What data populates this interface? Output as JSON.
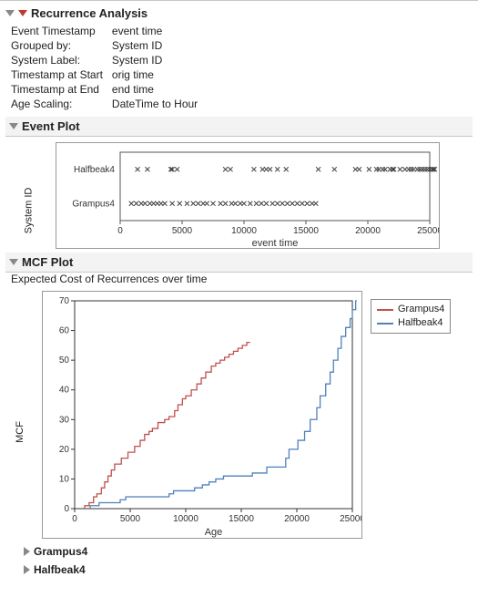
{
  "header": {
    "title": "Recurrence Analysis",
    "meta": [
      {
        "k": "Event Timestamp",
        "v": "event time"
      },
      {
        "k": "Grouped by:",
        "v": "System ID"
      },
      {
        "k": "System Label:",
        "v": "System ID"
      },
      {
        "k": "Timestamp at Start",
        "v": "orig time"
      },
      {
        "k": "Timestamp at End",
        "v": "end time"
      },
      {
        "k": "Age Scaling:",
        "v": "DateTime to Hour"
      }
    ]
  },
  "eventPlot": {
    "title": "Event Plot",
    "xlabel": "event time",
    "ylabel": "System ID",
    "xlim": [
      0,
      25000
    ],
    "xtick_step": 5000,
    "marker": "x",
    "marker_color": "#444444",
    "marker_size": 5,
    "series": [
      {
        "name": "Halfbeak4",
        "y": 0,
        "x": [
          1400,
          2200,
          4100,
          4200,
          4600,
          8500,
          8900,
          10800,
          11500,
          11800,
          12100,
          12700,
          13400,
          16000,
          17300,
          19000,
          19300,
          20100,
          20700,
          20900,
          21200,
          21400,
          21800,
          22000,
          22100,
          22600,
          23000,
          23300,
          23500,
          23700,
          24000,
          24200,
          24400,
          24600,
          24800,
          25000,
          25200,
          25300,
          25400
        ]
      },
      {
        "name": "Grampus4",
        "y": 1,
        "x": [
          900,
          1300,
          1700,
          2000,
          2400,
          2700,
          3000,
          3300,
          3600,
          4200,
          4800,
          5400,
          5900,
          6300,
          6700,
          7000,
          7500,
          8100,
          8500,
          9000,
          9300,
          9700,
          10000,
          10500,
          11000,
          11400,
          11800,
          12300,
          12700,
          13100,
          13500,
          13900,
          14300,
          14700,
          15100,
          15500,
          15800
        ]
      }
    ]
  },
  "mcfPlot": {
    "title": "MCF Plot",
    "subtitle": "Expected Cost of Recurrences over time",
    "xlabel": "Age",
    "ylabel": "MCF",
    "xlim": [
      0,
      25000
    ],
    "ylim": [
      0,
      70
    ],
    "xtick_step": 5000,
    "ytick_step": 10,
    "background_color": "#ffffff",
    "axis_color": "#333333",
    "series": [
      {
        "name": "Grampus4",
        "color": "#c0504d",
        "points": [
          [
            900,
            0
          ],
          [
            900,
            1
          ],
          [
            1300,
            1
          ],
          [
            1300,
            2
          ],
          [
            1700,
            2
          ],
          [
            1700,
            4
          ],
          [
            2000,
            4
          ],
          [
            2000,
            5
          ],
          [
            2400,
            5
          ],
          [
            2400,
            7
          ],
          [
            2700,
            7
          ],
          [
            2700,
            9
          ],
          [
            3000,
            9
          ],
          [
            3000,
            11
          ],
          [
            3300,
            11
          ],
          [
            3300,
            13
          ],
          [
            3600,
            13
          ],
          [
            3600,
            15
          ],
          [
            4200,
            15
          ],
          [
            4200,
            17
          ],
          [
            4800,
            17
          ],
          [
            4800,
            19
          ],
          [
            5400,
            19
          ],
          [
            5400,
            21
          ],
          [
            5900,
            21
          ],
          [
            5900,
            23
          ],
          [
            6300,
            23
          ],
          [
            6300,
            25
          ],
          [
            6700,
            25
          ],
          [
            6700,
            26
          ],
          [
            7000,
            26
          ],
          [
            7000,
            27
          ],
          [
            7500,
            27
          ],
          [
            7500,
            29
          ],
          [
            8100,
            29
          ],
          [
            8100,
            30
          ],
          [
            8500,
            30
          ],
          [
            8500,
            31
          ],
          [
            9000,
            31
          ],
          [
            9000,
            33
          ],
          [
            9300,
            33
          ],
          [
            9300,
            35
          ],
          [
            9700,
            35
          ],
          [
            9700,
            37
          ],
          [
            10000,
            37
          ],
          [
            10000,
            38
          ],
          [
            10500,
            38
          ],
          [
            10500,
            40
          ],
          [
            11000,
            40
          ],
          [
            11000,
            42
          ],
          [
            11400,
            42
          ],
          [
            11400,
            44
          ],
          [
            11800,
            44
          ],
          [
            11800,
            46
          ],
          [
            12300,
            46
          ],
          [
            12300,
            48
          ],
          [
            12700,
            48
          ],
          [
            12700,
            49
          ],
          [
            13100,
            49
          ],
          [
            13100,
            50
          ],
          [
            13500,
            50
          ],
          [
            13500,
            51
          ],
          [
            13900,
            51
          ],
          [
            13900,
            52
          ],
          [
            14300,
            52
          ],
          [
            14300,
            53
          ],
          [
            14700,
            53
          ],
          [
            14700,
            54
          ],
          [
            15100,
            54
          ],
          [
            15100,
            55
          ],
          [
            15500,
            55
          ],
          [
            15500,
            56
          ],
          [
            15800,
            56
          ]
        ]
      },
      {
        "name": "Halfbeak4",
        "color": "#4f81bd",
        "points": [
          [
            1400,
            0
          ],
          [
            1400,
            1
          ],
          [
            2200,
            1
          ],
          [
            2200,
            2
          ],
          [
            4100,
            2
          ],
          [
            4100,
            3
          ],
          [
            4600,
            3
          ],
          [
            4600,
            4
          ],
          [
            8500,
            4
          ],
          [
            8500,
            5
          ],
          [
            8900,
            5
          ],
          [
            8900,
            6
          ],
          [
            10800,
            6
          ],
          [
            10800,
            7
          ],
          [
            11500,
            7
          ],
          [
            11500,
            8
          ],
          [
            12100,
            8
          ],
          [
            12100,
            9
          ],
          [
            12700,
            9
          ],
          [
            12700,
            10
          ],
          [
            13400,
            10
          ],
          [
            13400,
            11
          ],
          [
            16000,
            11
          ],
          [
            16000,
            12
          ],
          [
            17300,
            12
          ],
          [
            17300,
            14
          ],
          [
            19000,
            14
          ],
          [
            19000,
            17
          ],
          [
            19300,
            17
          ],
          [
            19300,
            20
          ],
          [
            20100,
            20
          ],
          [
            20100,
            23
          ],
          [
            20700,
            23
          ],
          [
            20700,
            26
          ],
          [
            21200,
            26
          ],
          [
            21200,
            30
          ],
          [
            21800,
            30
          ],
          [
            21800,
            34
          ],
          [
            22100,
            34
          ],
          [
            22100,
            38
          ],
          [
            22600,
            38
          ],
          [
            22600,
            42
          ],
          [
            23000,
            42
          ],
          [
            23000,
            46
          ],
          [
            23300,
            46
          ],
          [
            23300,
            50
          ],
          [
            23700,
            50
          ],
          [
            23700,
            54
          ],
          [
            24000,
            54
          ],
          [
            24000,
            58
          ],
          [
            24400,
            58
          ],
          [
            24400,
            61
          ],
          [
            24800,
            61
          ],
          [
            24800,
            64
          ],
          [
            25000,
            64
          ],
          [
            25000,
            67
          ],
          [
            25300,
            67
          ],
          [
            25300,
            70
          ],
          [
            25400,
            70
          ]
        ]
      }
    ]
  },
  "bottomGroups": [
    "Grampus4",
    "Halfbeak4"
  ]
}
